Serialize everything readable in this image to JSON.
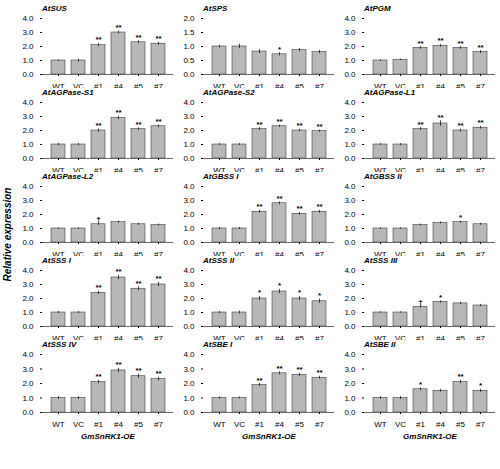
{
  "ylabel": "Relative expression",
  "chart_data": [
    {
      "type": "bar",
      "title": "AtSUS",
      "categories": [
        "WT",
        "VC",
        "#1",
        "#4",
        "#5",
        "#7"
      ],
      "values": [
        1.0,
        1.0,
        2.1,
        3.0,
        2.3,
        2.2
      ],
      "errors": [
        0.05,
        0.1,
        0.12,
        0.1,
        0.1,
        0.1
      ],
      "annotations": [
        null,
        null,
        "**",
        "**",
        "**",
        "**"
      ],
      "color": "#b8b8b8",
      "ylim": [
        0.0,
        4.0
      ],
      "yticks": [
        {
          "value": 0.0,
          "label": "0.0"
        },
        {
          "value": 1.0,
          "label": "1.0"
        },
        {
          "value": 2.0,
          "label": "2.0"
        },
        {
          "value": 3.0,
          "label": "3.0"
        },
        {
          "value": 4.0,
          "label": "4.0"
        }
      ]
    },
    {
      "type": "bar",
      "title": "AtSPS",
      "categories": [
        "WT",
        "VC",
        "#1",
        "#4",
        "#5",
        "#7"
      ],
      "values": [
        1.0,
        1.0,
        0.82,
        0.72,
        0.87,
        0.8
      ],
      "errors": [
        0.05,
        0.08,
        0.07,
        0.06,
        0.06,
        0.06
      ],
      "annotations": [
        null,
        null,
        null,
        "*",
        null,
        null
      ],
      "color": "#b8b8b8",
      "ylim": [
        0.0,
        2.0
      ],
      "yticks": [
        {
          "value": 0.0,
          "label": "0.0"
        },
        {
          "value": 0.5,
          "label": "0.5"
        },
        {
          "value": 1.0,
          "label": "1.0"
        },
        {
          "value": 1.5,
          "label": "1.5"
        },
        {
          "value": 2.0,
          "label": "2.0"
        }
      ]
    },
    {
      "type": "bar",
      "title": "AtPGM",
      "categories": [
        "WT",
        "VC",
        "#1",
        "#4",
        "#5",
        "#7"
      ],
      "values": [
        1.0,
        1.05,
        1.9,
        2.05,
        1.9,
        1.6
      ],
      "errors": [
        0.05,
        0.05,
        0.1,
        0.1,
        0.1,
        0.1
      ],
      "annotations": [
        null,
        null,
        "**",
        "**",
        "**",
        "**"
      ],
      "color": "#b8b8b8",
      "ylim": [
        0.0,
        4.0
      ],
      "yticks": [
        {
          "value": 0.0,
          "label": "0.0"
        },
        {
          "value": 1.0,
          "label": "1.0"
        },
        {
          "value": 2.0,
          "label": "2.0"
        },
        {
          "value": 3.0,
          "label": "3.0"
        },
        {
          "value": 4.0,
          "label": "4.0"
        }
      ]
    },
    {
      "type": "bar",
      "title": "AtAGPase-S1",
      "categories": [
        "WT",
        "VC",
        "#1",
        "#4",
        "#5",
        "#7"
      ],
      "values": [
        1.0,
        1.0,
        2.0,
        2.9,
        2.1,
        2.3
      ],
      "errors": [
        0.08,
        0.08,
        0.12,
        0.12,
        0.1,
        0.1
      ],
      "annotations": [
        null,
        null,
        "**",
        "**",
        "**",
        "**"
      ],
      "color": "#b8b8b8",
      "ylim": [
        0.0,
        4.0
      ],
      "yticks": [
        {
          "value": 0.0,
          "label": "0.0"
        },
        {
          "value": 1.0,
          "label": "1.0"
        },
        {
          "value": 2.0,
          "label": "2.0"
        },
        {
          "value": 3.0,
          "label": "3.0"
        },
        {
          "value": 4.0,
          "label": "4.0"
        }
      ]
    },
    {
      "type": "bar",
      "title": "AtAGPase-S2",
      "categories": [
        "WT",
        "VC",
        "#1",
        "#4",
        "#5",
        "#7"
      ],
      "values": [
        1.0,
        1.0,
        2.1,
        2.3,
        2.0,
        1.95
      ],
      "errors": [
        0.07,
        0.07,
        0.1,
        0.08,
        0.08,
        0.08
      ],
      "annotations": [
        null,
        null,
        "**",
        "**",
        "**",
        "**"
      ],
      "color": "#b8b8b8",
      "ylim": [
        0.0,
        4.0
      ],
      "yticks": [
        {
          "value": 0.0,
          "label": "0.0"
        },
        {
          "value": 1.0,
          "label": "1.0"
        },
        {
          "value": 2.0,
          "label": "2.0"
        },
        {
          "value": 3.0,
          "label": "3.0"
        },
        {
          "value": 4.0,
          "label": "4.0"
        }
      ]
    },
    {
      "type": "bar",
      "title": "AtAGPase-L1",
      "categories": [
        "WT",
        "VC",
        "#1",
        "#4",
        "#5",
        "#7"
      ],
      "values": [
        1.0,
        1.0,
        2.1,
        2.5,
        2.0,
        2.2
      ],
      "errors": [
        0.07,
        0.07,
        0.1,
        0.2,
        0.1,
        0.1
      ],
      "annotations": [
        null,
        null,
        "**",
        "**",
        "**",
        "**"
      ],
      "color": "#b8b8b8",
      "ylim": [
        0.0,
        4.0
      ],
      "yticks": [
        {
          "value": 0.0,
          "label": "0.0"
        },
        {
          "value": 1.0,
          "label": "1.0"
        },
        {
          "value": 2.0,
          "label": "2.0"
        },
        {
          "value": 3.0,
          "label": "3.0"
        },
        {
          "value": 4.0,
          "label": "4.0"
        }
      ]
    },
    {
      "type": "bar",
      "title": "AtAGPase-L2",
      "categories": [
        "WT",
        "VC",
        "#1",
        "#4",
        "#5",
        "#7"
      ],
      "values": [
        1.0,
        1.0,
        1.3,
        1.45,
        1.3,
        1.25
      ],
      "errors": [
        0.05,
        0.05,
        0.08,
        0.08,
        0.07,
        0.07
      ],
      "annotations": [
        null,
        null,
        "†",
        null,
        null,
        null
      ],
      "color": "#b8b8b8",
      "ylim": [
        0.0,
        4.0
      ],
      "yticks": [
        {
          "value": 0.0,
          "label": "0.0"
        },
        {
          "value": 1.0,
          "label": "1.0"
        },
        {
          "value": 2.0,
          "label": "2.0"
        },
        {
          "value": 3.0,
          "label": "3.0"
        },
        {
          "value": 4.0,
          "label": "4.0"
        }
      ]
    },
    {
      "type": "bar",
      "title": "AtGBSS I",
      "categories": [
        "WT",
        "VC",
        "#1",
        "#4",
        "#5",
        "#7"
      ],
      "values": [
        1.0,
        1.0,
        2.2,
        2.8,
        2.05,
        2.2
      ],
      "errors": [
        0.07,
        0.07,
        0.1,
        0.1,
        0.1,
        0.1
      ],
      "annotations": [
        null,
        null,
        "**",
        "**",
        "**",
        "**"
      ],
      "color": "#b8b8b8",
      "ylim": [
        0.0,
        4.0
      ],
      "yticks": [
        {
          "value": 0.0,
          "label": "0.0"
        },
        {
          "value": 1.0,
          "label": "1.0"
        },
        {
          "value": 2.0,
          "label": "2.0"
        },
        {
          "value": 3.0,
          "label": "3.0"
        },
        {
          "value": 4.0,
          "label": "4.0"
        }
      ]
    },
    {
      "type": "bar",
      "title": "AtGBSS II",
      "categories": [
        "WT",
        "VC",
        "#1",
        "#4",
        "#5",
        "#7"
      ],
      "values": [
        1.0,
        1.0,
        1.25,
        1.4,
        1.45,
        1.3
      ],
      "errors": [
        0.05,
        0.05,
        0.07,
        0.07,
        0.07,
        0.07
      ],
      "annotations": [
        null,
        null,
        null,
        null,
        "*",
        null
      ],
      "color": "#b8b8b8",
      "ylim": [
        0.0,
        4.0
      ],
      "yticks": [
        {
          "value": 0.0,
          "label": "0.0"
        },
        {
          "value": 1.0,
          "label": "1.0"
        },
        {
          "value": 2.0,
          "label": "2.0"
        },
        {
          "value": 3.0,
          "label": "3.0"
        },
        {
          "value": 4.0,
          "label": "4.0"
        }
      ]
    },
    {
      "type": "bar",
      "title": "AtSSS I",
      "categories": [
        "WT",
        "VC",
        "#1",
        "#4",
        "#5",
        "#7"
      ],
      "values": [
        1.0,
        1.0,
        2.4,
        3.5,
        2.7,
        3.0
      ],
      "errors": [
        0.07,
        0.07,
        0.12,
        0.15,
        0.15,
        0.15
      ],
      "annotations": [
        null,
        null,
        "**",
        "**",
        "**",
        "**"
      ],
      "color": "#b8b8b8",
      "ylim": [
        0.0,
        4.0
      ],
      "yticks": [
        {
          "value": 0.0,
          "label": "0.0"
        },
        {
          "value": 1.0,
          "label": "1.0"
        },
        {
          "value": 2.0,
          "label": "2.0"
        },
        {
          "value": 3.0,
          "label": "3.0"
        },
        {
          "value": 4.0,
          "label": "4.0"
        }
      ]
    },
    {
      "type": "bar",
      "title": "AtSSS II",
      "categories": [
        "WT",
        "VC",
        "#1",
        "#4",
        "#5",
        "#7"
      ],
      "values": [
        1.0,
        1.0,
        2.0,
        2.5,
        2.0,
        1.8
      ],
      "errors": [
        0.08,
        0.1,
        0.15,
        0.15,
        0.15,
        0.15
      ],
      "annotations": [
        null,
        null,
        "*",
        "*",
        "*",
        "*"
      ],
      "color": "#b8b8b8",
      "ylim": [
        0.0,
        4.0
      ],
      "yticks": [
        {
          "value": 0.0,
          "label": "0.0"
        },
        {
          "value": 1.0,
          "label": "1.0"
        },
        {
          "value": 2.0,
          "label": "2.0"
        },
        {
          "value": 3.0,
          "label": "3.0"
        },
        {
          "value": 4.0,
          "label": "4.0"
        }
      ]
    },
    {
      "type": "bar",
      "title": "AtSSS III",
      "categories": [
        "WT",
        "VC",
        "#1",
        "#4",
        "#5",
        "#7"
      ],
      "values": [
        1.0,
        1.0,
        1.4,
        1.75,
        1.65,
        1.5
      ],
      "errors": [
        0.05,
        0.05,
        0.08,
        0.08,
        0.08,
        0.08
      ],
      "annotations": [
        null,
        null,
        "†",
        "*",
        null,
        null
      ],
      "color": "#b8b8b8",
      "ylim": [
        0.0,
        4.0
      ],
      "yticks": [
        {
          "value": 0.0,
          "label": "0.0"
        },
        {
          "value": 1.0,
          "label": "1.0"
        },
        {
          "value": 2.0,
          "label": "2.0"
        },
        {
          "value": 3.0,
          "label": "3.0"
        },
        {
          "value": 4.0,
          "label": "4.0"
        }
      ]
    },
    {
      "type": "bar",
      "title": "AtSSS IV",
      "categories": [
        "WT",
        "VC",
        "#1",
        "#4",
        "#5",
        "#7"
      ],
      "values": [
        1.0,
        1.0,
        2.1,
        2.9,
        2.5,
        2.3
      ],
      "errors": [
        0.1,
        0.1,
        0.12,
        0.15,
        0.15,
        0.12
      ],
      "annotations": [
        null,
        null,
        "**",
        "**",
        "**",
        "**"
      ],
      "color": "#b8b8b8",
      "ylim": [
        0.0,
        4.0
      ],
      "yticks": [
        {
          "value": 0.0,
          "label": "0.0"
        },
        {
          "value": 1.0,
          "label": "1.0"
        },
        {
          "value": 2.0,
          "label": "2.0"
        },
        {
          "value": 3.0,
          "label": "3.0"
        },
        {
          "value": 4.0,
          "label": "4.0"
        }
      ],
      "xlabel": "GmSnRK1-OE"
    },
    {
      "type": "bar",
      "title": "AtSBE I",
      "categories": [
        "WT",
        "VC",
        "#1",
        "#4",
        "#5",
        "#7"
      ],
      "values": [
        1.0,
        1.0,
        1.9,
        2.7,
        2.6,
        2.4
      ],
      "errors": [
        0.07,
        0.07,
        0.1,
        0.1,
        0.1,
        0.1
      ],
      "annotations": [
        null,
        null,
        "**",
        "**",
        "**",
        "**"
      ],
      "color": "#b8b8b8",
      "ylim": [
        0.0,
        4.0
      ],
      "yticks": [
        {
          "value": 0.0,
          "label": "0.0"
        },
        {
          "value": 1.0,
          "label": "1.0"
        },
        {
          "value": 2.0,
          "label": "2.0"
        },
        {
          "value": 3.0,
          "label": "3.0"
        },
        {
          "value": 4.0,
          "label": "4.0"
        }
      ],
      "xlabel": "GmSnRK1-OE"
    },
    {
      "type": "bar",
      "title": "AtSBE II",
      "categories": [
        "WT",
        "VC",
        "#1",
        "#4",
        "#5",
        "#7"
      ],
      "values": [
        1.0,
        1.0,
        1.6,
        1.5,
        2.1,
        1.5
      ],
      "errors": [
        0.1,
        0.1,
        0.1,
        0.1,
        0.12,
        0.1
      ],
      "annotations": [
        null,
        null,
        "*",
        null,
        "**",
        "*"
      ],
      "color": "#b8b8b8",
      "ylim": [
        0.0,
        4.0
      ],
      "yticks": [
        {
          "value": 0.0,
          "label": "0.0"
        },
        {
          "value": 1.0,
          "label": "1.0"
        },
        {
          "value": 2.0,
          "label": "2.0"
        },
        {
          "value": 3.0,
          "label": "3.0"
        },
        {
          "value": 4.0,
          "label": "4.0"
        }
      ],
      "xlabel": "GmSnRK1-OE"
    }
  ]
}
